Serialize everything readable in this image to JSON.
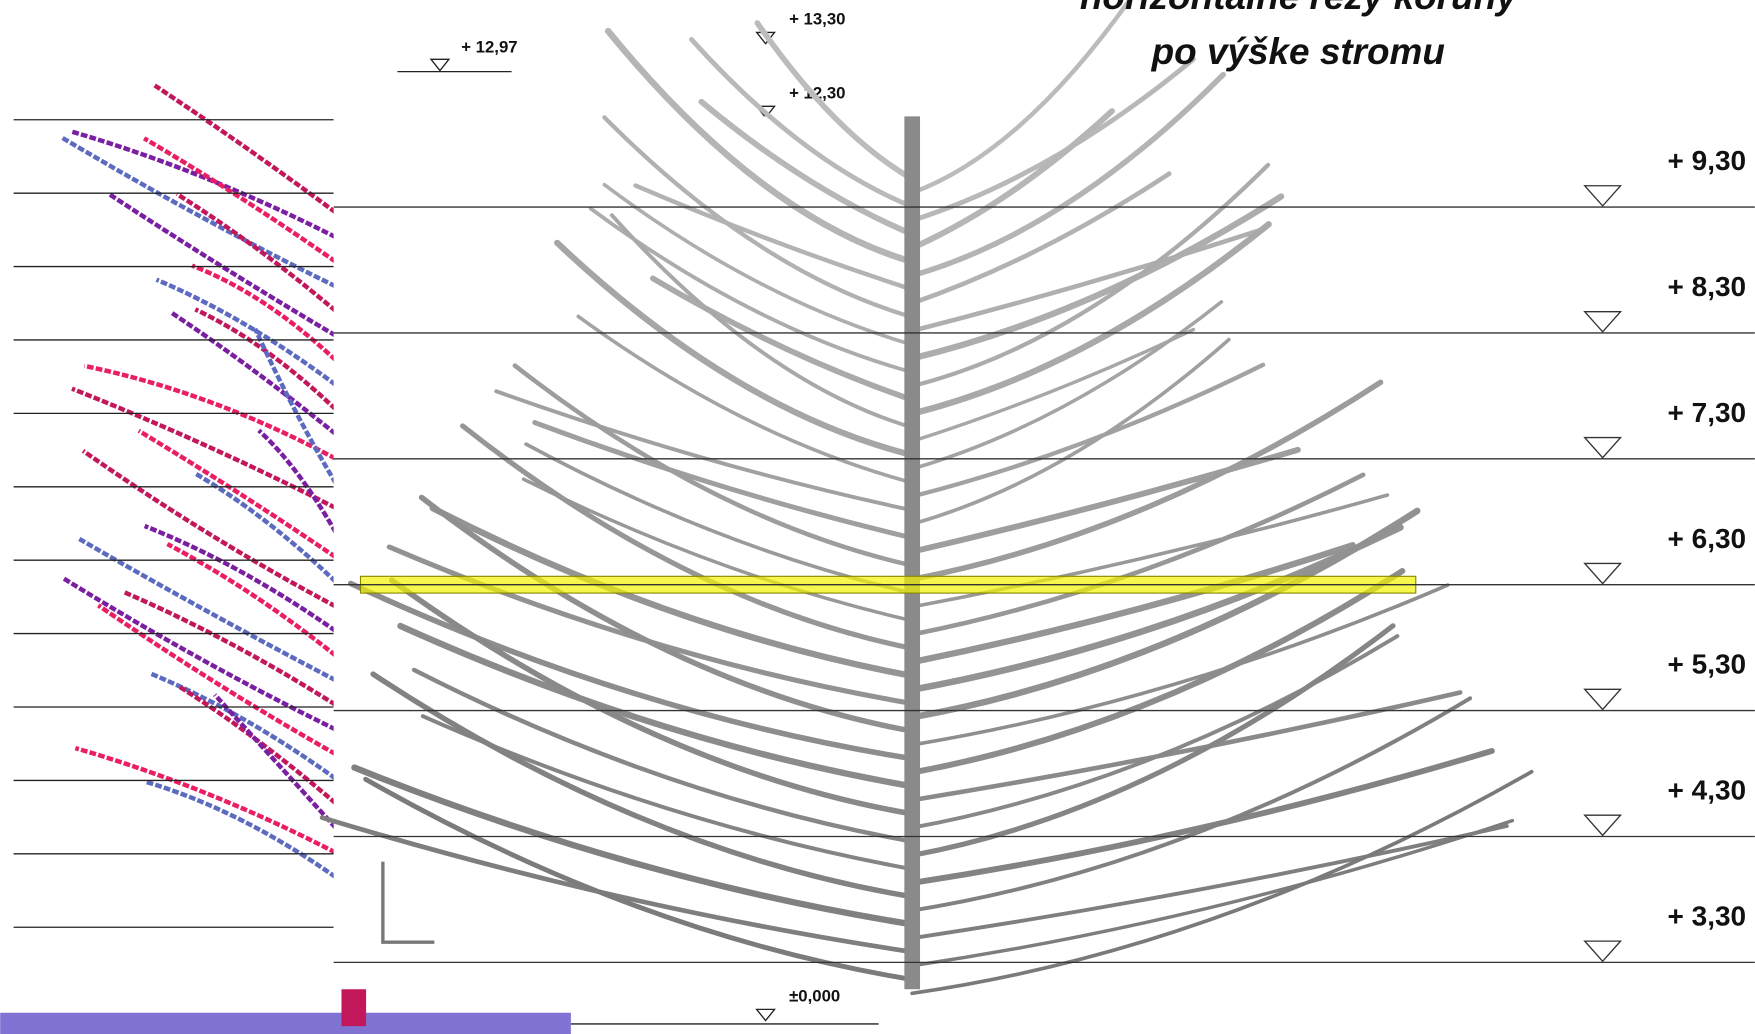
{
  "title": {
    "line1": "horizontálne rezy koruny",
    "line2": "po výške stromu"
  },
  "top_levels": [
    "+ 13,30",
    "+ 12,97",
    "+ 12,30"
  ],
  "levels": [
    "+ 9,30",
    "+ 8,30",
    "+ 7,30",
    "+ 6,30",
    "+ 5,30",
    "+ 4,30",
    "+ 3,30"
  ],
  "base_level": "±0,000"
}
